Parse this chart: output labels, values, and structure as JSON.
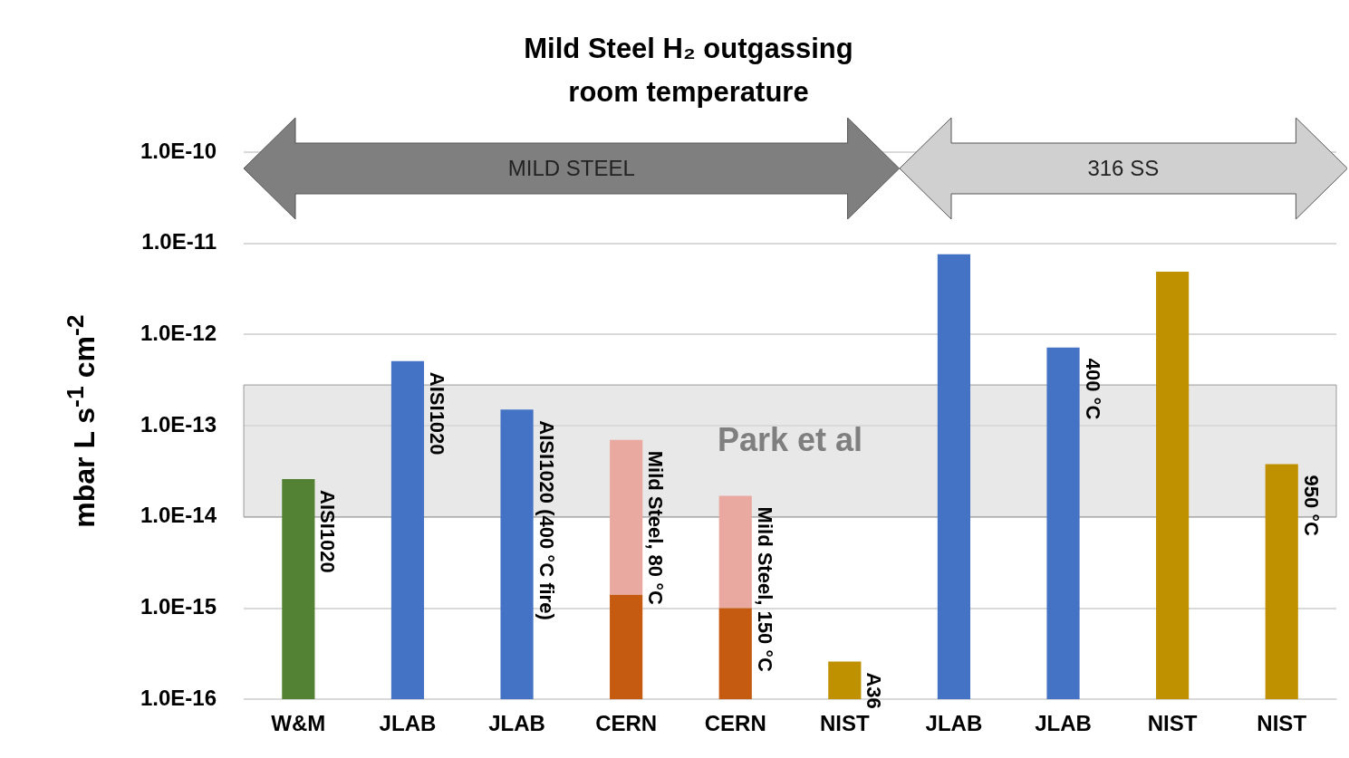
{
  "chart_data": {
    "type": "bar",
    "title": "Mild Steel H₂ outgassing\nroom temperature",
    "ylabel": "mbar L s$^{-1}$ cm$^{-2}$",
    "categories": [
      "W&M",
      "JLAB",
      "JLAB",
      "CERN",
      "CERN",
      "NIST",
      "JLAB",
      "JLAB",
      "NIST",
      "NIST"
    ],
    "stacked": true,
    "log": true,
    "grid": "y",
    "ylim": [
      1e-16,
      1e-10
    ],
    "yticks": [
      {
        "value": 1e-16,
        "label": "1.0E-16"
      },
      {
        "value": 1e-15,
        "label": "1.0E-15"
      },
      {
        "value": 1e-14,
        "label": "1.0E-14"
      },
      {
        "value": 1e-13,
        "label": "1.0E-13"
      },
      {
        "value": 1e-12,
        "label": "1.0E-12"
      },
      {
        "value": 1e-11,
        "label": "1.0E-11"
      },
      {
        "value": 1e-10,
        "label": "1.0E-10"
      }
    ],
    "series": [
      {
        "values": [
          2.6e-14,
          5.1e-13,
          1.5e-13,
          1.4e-15,
          1e-15,
          2.6e-16,
          7.6e-12,
          7.2e-13,
          4.9e-12,
          3.8e-14
        ],
        "colors": [
          "#548235",
          "#4472c4",
          "#4472c4",
          "#c55a11",
          "#c55a11",
          "#bf9000",
          "#4472c4",
          "#4472c4",
          "#bf9000",
          "#bf9000"
        ]
      },
      {
        "values": [
          null,
          null,
          null,
          6.86e-14,
          1.6e-14,
          null,
          null,
          null,
          null,
          null
        ],
        "color": "#eaa9a0"
      }
    ],
    "value_labels": [
      "AISI1020",
      "AISI1020",
      "AISI1020 (400 °C fire)",
      "Mild Steel, 80 °C",
      "Mild Steel, 150 °C",
      "A36",
      null,
      "400 °C",
      null,
      "950 °C"
    ],
    "bands": [
      {
        "axis": "y",
        "from": 1e-14,
        "to": 2.8e-13,
        "label": "Park et al",
        "color": "#d9d9d9"
      }
    ],
    "annotations": [
      "MILD STEEL",
      "316 SS"
    ]
  }
}
